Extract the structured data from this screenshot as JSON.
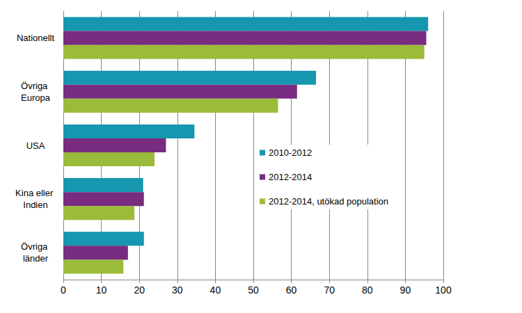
{
  "chart_data": {
    "type": "bar",
    "orientation": "horizontal",
    "categories": [
      "Nationellt",
      "Övriga Europa",
      "USA",
      "Kina eller Indien",
      "Övriga länder"
    ],
    "series": [
      {
        "name": "2010-2012",
        "color": "#1597AF",
        "values": [
          96,
          66.5,
          34.5,
          21,
          21.2
        ]
      },
      {
        "name": "2012-2014",
        "color": "#772C7F",
        "values": [
          95.5,
          61.5,
          27,
          21.2,
          17
        ]
      },
      {
        "name": "2012-2014, utökad population",
        "color": "#9BBB3B",
        "values": [
          95,
          56.5,
          24,
          18.7,
          15.8
        ]
      }
    ],
    "xlim": [
      0,
      100
    ],
    "xticks": [
      0,
      10,
      20,
      30,
      40,
      50,
      60,
      70,
      80,
      90,
      100
    ],
    "grid": true,
    "legend": "right"
  }
}
